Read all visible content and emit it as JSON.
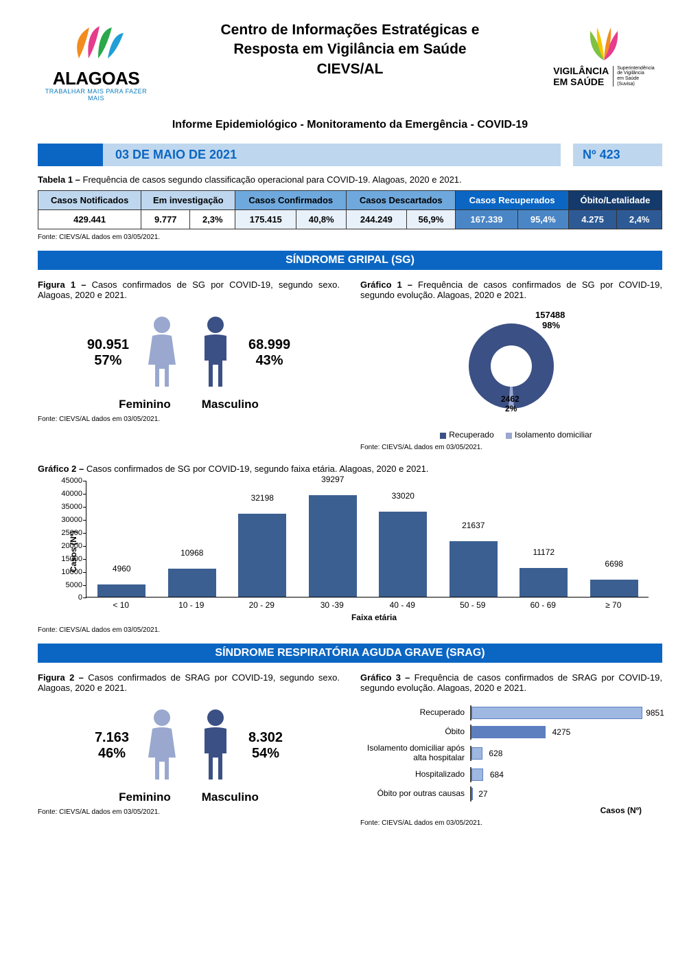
{
  "header": {
    "title_line1": "Centro de Informações Estratégicas e",
    "title_line2": "Resposta em Vigilância em Saúde",
    "title_line3": "CIEVS/AL",
    "alagoas_label": "ALAGOAS",
    "alagoas_tagline": "TRABALHAR MAIS PARA FAZER MAIS",
    "vig_label1": "VIGILÂNCIA",
    "vig_label2": "EM SAÚDE",
    "vig_side1": "Superintendência",
    "vig_side2": "de Vigilância",
    "vig_side3": "em Saúde",
    "vig_side4": "(Suvisa)"
  },
  "subtitle": "Informe Epidemiológico - Monitoramento da Emergência - COVID-19",
  "datebar": {
    "date": "03 DE MAIO DE 2021",
    "num": "Nº 423"
  },
  "table1": {
    "caption_bold": "Tabela 1 – ",
    "caption_rest": "Frequência de casos segundo classificação operacional para COVID-19. Alagoas, 2020 e 2021.",
    "headers": [
      "Casos Notificados",
      "Em investigação",
      "Casos Confirmados",
      "Casos Descartados",
      "Casos Recuperados",
      "Óbito/Letalidade"
    ],
    "row": [
      "429.441",
      "9.777",
      "2,3%",
      "175.415",
      "40,8%",
      "244.249",
      "56,9%",
      "167.339",
      "95,4%",
      "4.275",
      "2,4%"
    ],
    "source": "Fonte: CIEVS/AL dados em 03/05/2021."
  },
  "sg": {
    "section_title": "SÍNDROME GRIPAL (SG)",
    "fig1_bold": "Figura 1 – ",
    "fig1_rest": "Casos confirmados de SG por COVID-19, segundo sexo. Alagoas, 2020 e 2021.",
    "fem_n": "90.951",
    "fem_p": "57%",
    "fem_label": "Feminino",
    "mas_n": "68.999",
    "mas_p": "43%",
    "mas_label": "Masculino",
    "fem_color": "#9aa8cf",
    "mas_color": "#3b5084",
    "fig1_source": "Fonte: CIEVS/AL dados em 03/05/2021.",
    "graf1_bold": "Gráfico 1 – ",
    "graf1_rest": "Frequência de casos confirmados de SG por COVID-19, segundo evolução. Alagoas, 2020 e 2021.",
    "donut": {
      "big_n": "157488",
      "big_p": "98%",
      "small_n": "2462",
      "small_p": "2%",
      "big_color": "#3b5084",
      "small_color": "#9aa8cf",
      "legend1": "Recuperado",
      "legend2": "Isolamento domiciliar"
    },
    "graf1_source": "Fonte: CIEVS/AL dados em 03/05/2021.",
    "graf2_bold": "Gráfico 2 – ",
    "graf2_rest": "Casos confirmados de SG por COVID-19, segundo faixa etária. Alagoas, 2020 e 2021.",
    "bar": {
      "ylabel": "Casos (Nº)",
      "xlabel": "Faixa etária",
      "ymax": 45000,
      "ystep": 5000,
      "categories": [
        "< 10",
        "10 - 19",
        "20 - 29",
        "30 -39",
        "40 - 49",
        "50 - 59",
        "60 - 69",
        "≥ 70"
      ],
      "values": [
        4960,
        10968,
        32198,
        39297,
        33020,
        21637,
        11172,
        6698
      ],
      "color": "#3b5f91"
    },
    "graf2_source": "Fonte: CIEVS/AL dados em 03/05/2021."
  },
  "srag": {
    "section_title": "SÍNDROME RESPIRATÓRIA AGUDA GRAVE (SRAG)",
    "fig2_bold": "Figura 2 – ",
    "fig2_rest": "Casos confirmados de SRAG por COVID-19, segundo sexo. Alagoas, 2020 e 2021.",
    "fem_n": "7.163",
    "fem_p": "46%",
    "fem_label": "Feminino",
    "mas_n": "8.302",
    "mas_p": "54%",
    "mas_label": "Masculino",
    "fem_color": "#9aa8cf",
    "mas_color": "#3b5084",
    "fig2_source": "Fonte: CIEVS/AL dados em 03/05/2021.",
    "graf3_bold": "Gráfico 3 – ",
    "graf3_rest": "Frequência de casos confirmados de SRAG por COVID-19, segundo evolução. Alagoas, 2020 e 2021.",
    "hbar": {
      "xmax": 11000,
      "xlabel": "Casos (Nº)",
      "rows": [
        {
          "label": "Recuperado",
          "value": 9851,
          "color": "#9fb8e2"
        },
        {
          "label": "Óbito",
          "value": 4275,
          "color": "#5d7fbf"
        },
        {
          "label": "Isolamento domiciliar após alta hospitalar",
          "value": 628,
          "color": "#9fb8e2"
        },
        {
          "label": "Hospitalizado",
          "value": 684,
          "color": "#9fb8e2"
        },
        {
          "label": "Óbito por outras causas",
          "value": 27,
          "color": "#9fb8e2"
        }
      ]
    },
    "graf3_source": "Fonte: CIEVS/AL dados em 03/05/2021."
  }
}
